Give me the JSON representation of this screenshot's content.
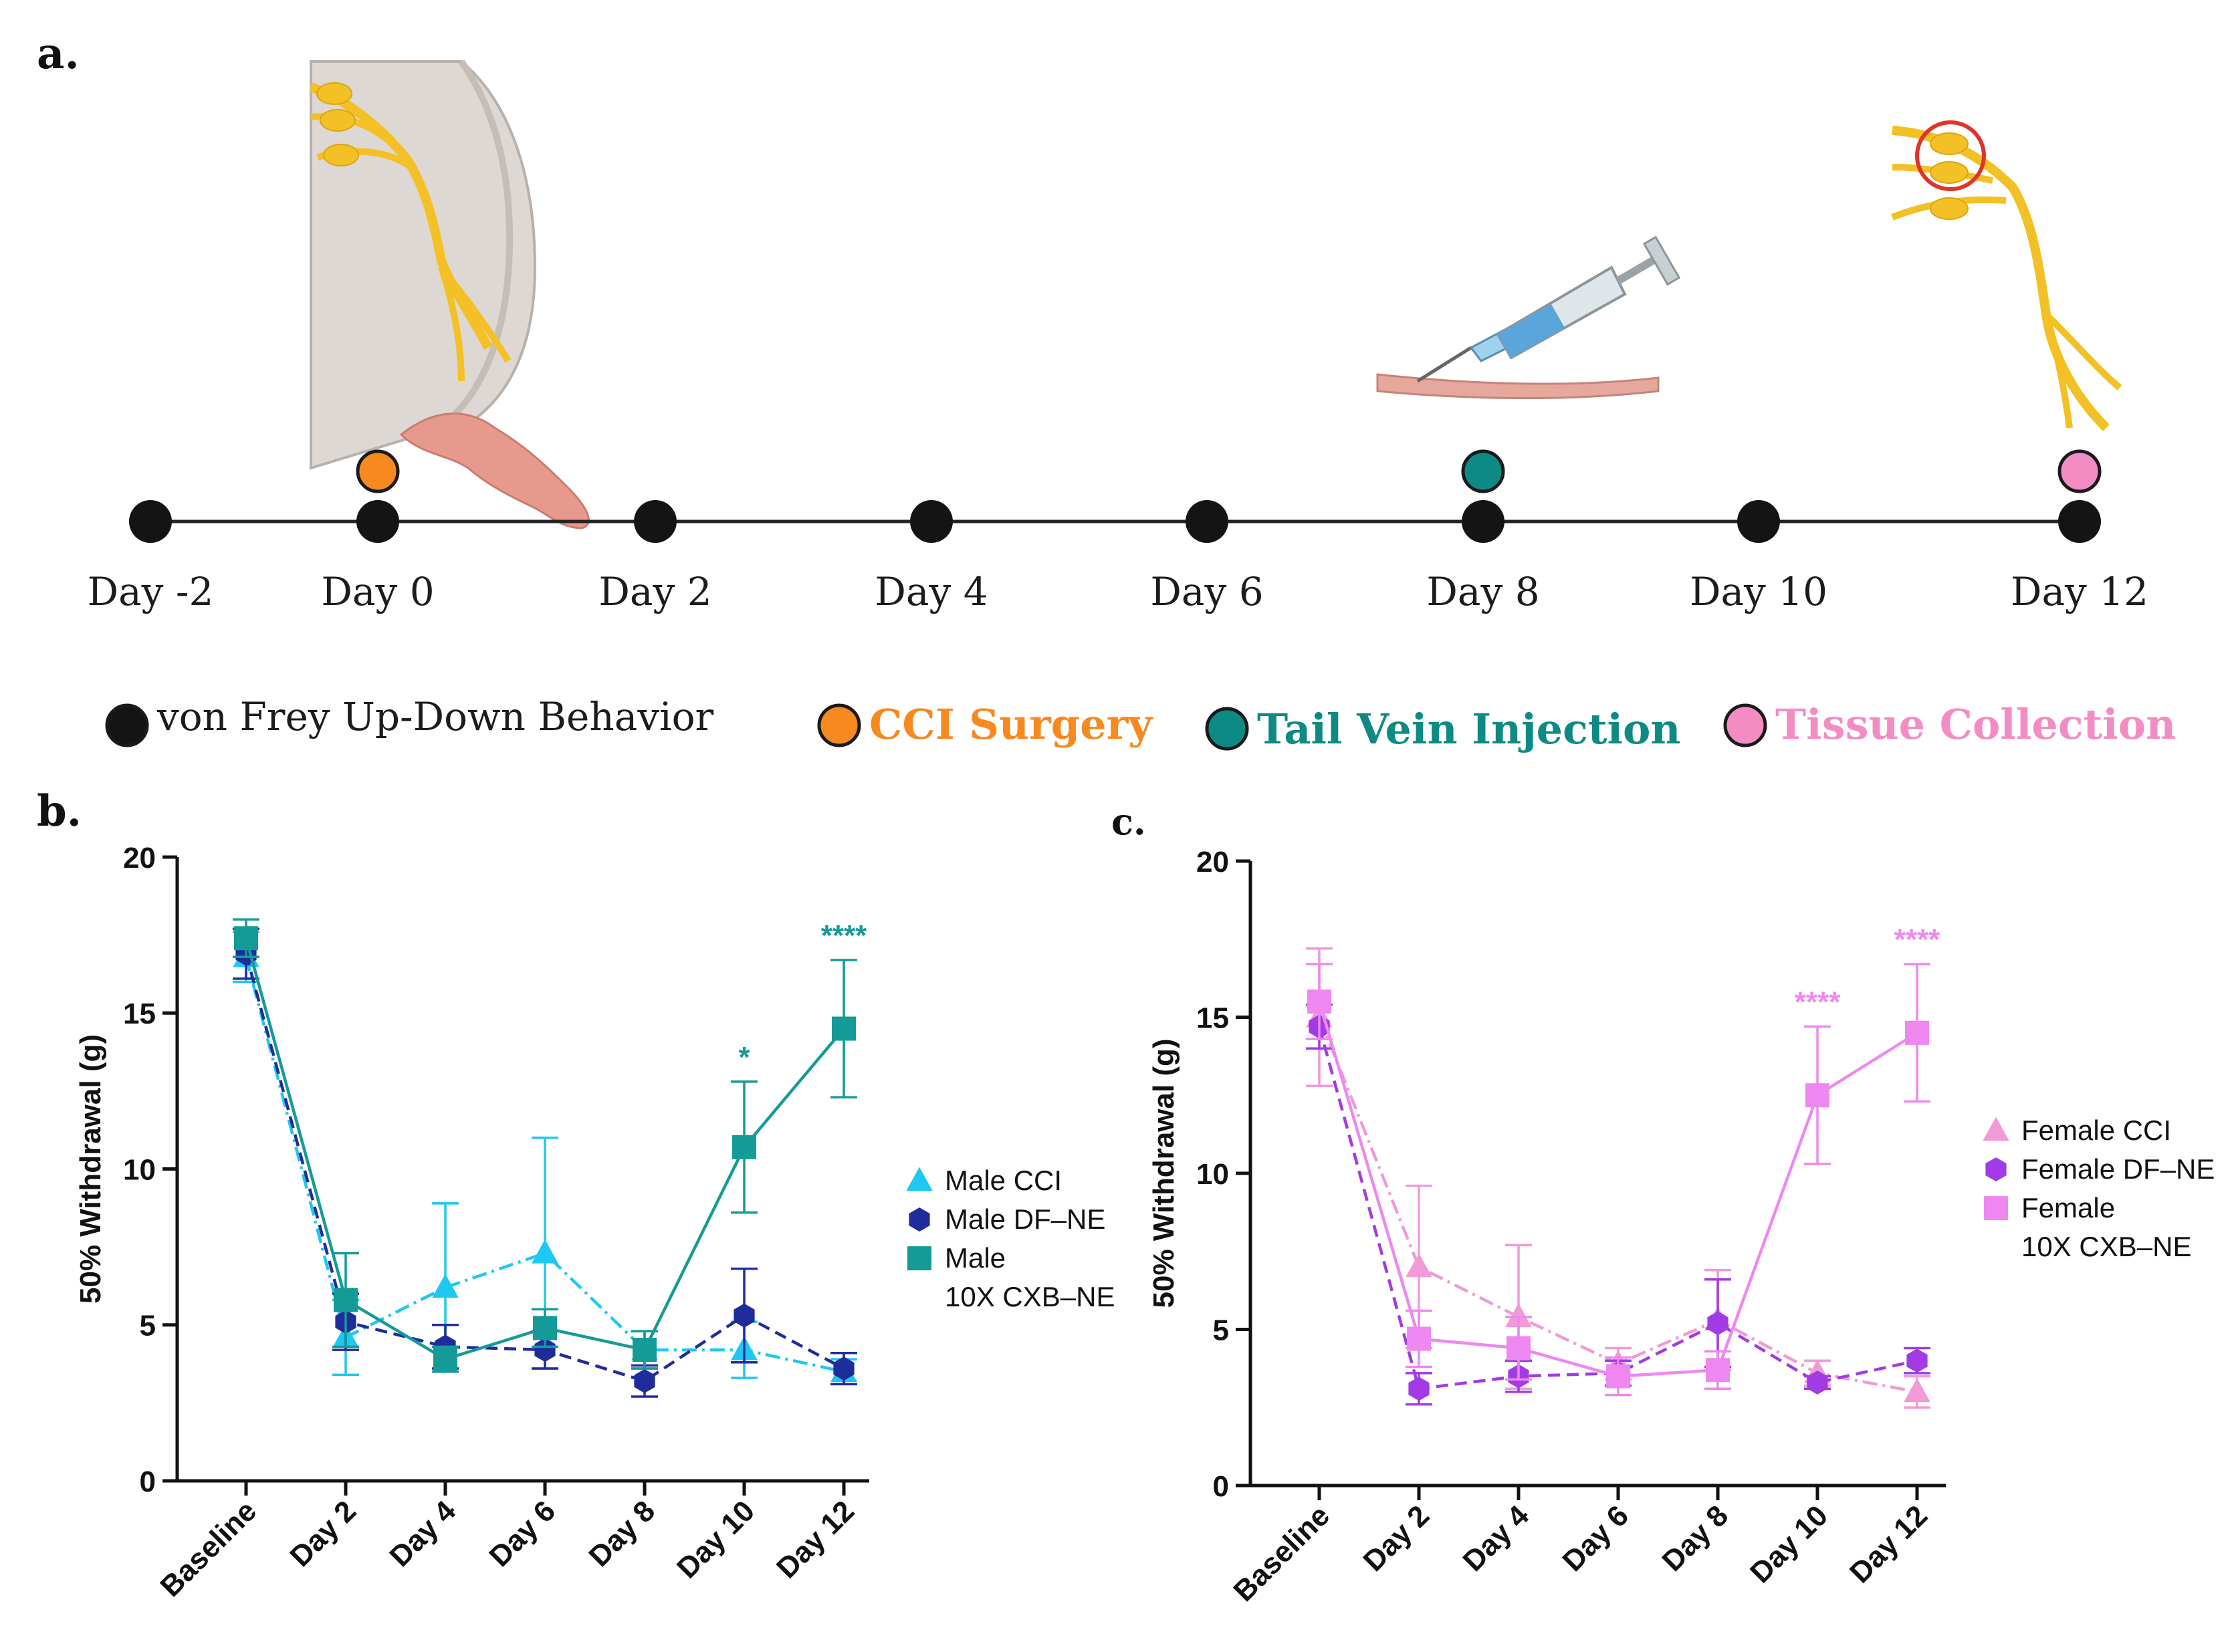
{
  "panels": {
    "a": "a.",
    "b": "b.",
    "c": "c."
  },
  "timeline": {
    "days": [
      "Day -2",
      "Day 0",
      "Day 2",
      "Day 4",
      "Day 6",
      "Day 8",
      "Day 10",
      "Day 12"
    ],
    "events": [
      {
        "day": "Day 0",
        "color": "#f7891f"
      },
      {
        "day": "Day 8",
        "color": "#0d8a84"
      },
      {
        "day": "Day 12",
        "color": "#f48cc4"
      }
    ]
  },
  "legend": [
    {
      "label": "von Frey Up-Down Behavior",
      "color": "#141414",
      "text_color": "#1c1c1c"
    },
    {
      "label": "CCI Surgery",
      "color": "#f7891f",
      "text_color": "#f7891f"
    },
    {
      "label": "Tail Vein Injection",
      "color": "#0d8a84",
      "text_color": "#0d8a84"
    },
    {
      "label": "Tissue Collection",
      "color": "#f48cc4",
      "text_color": "#f48cc4"
    }
  ],
  "chart_data": [
    {
      "type": "line",
      "panel": "b",
      "ylabel": "50% Withdrawal (g)",
      "xlabel": "",
      "ylim": [
        0,
        20
      ],
      "yticks": [
        "0",
        "5",
        "10",
        "15",
        "20"
      ],
      "categories": [
        "Baseline",
        "Day 2",
        "Day 4",
        "Day 6",
        "Day 8",
        "Day 10",
        "Day 12"
      ],
      "series": [
        {
          "name": "Male CCI",
          "color": "#1ec8f0",
          "marker": "triangle",
          "dash": "dashdot",
          "values": [
            16.8,
            4.6,
            6.2,
            7.3,
            4.2,
            4.2,
            3.5
          ],
          "errors": [
            0.8,
            1.2,
            2.7,
            3.7,
            0.6,
            0.9,
            0.4
          ]
        },
        {
          "name": "Male DF–NE",
          "color": "#1f2d9c",
          "marker": "hexagon",
          "dash": "dashed",
          "values": [
            16.9,
            5.1,
            4.3,
            4.2,
            3.2,
            5.3,
            3.6
          ],
          "errors": [
            0.8,
            0.9,
            0.7,
            0.6,
            0.5,
            1.5,
            0.5
          ]
        },
        {
          "name": "Male",
          "name_line2": "10X CXB–NE",
          "color": "#149b98",
          "marker": "square",
          "dash": "solid",
          "values": [
            17.4,
            5.8,
            3.9,
            4.9,
            4.2,
            10.7,
            14.5
          ],
          "errors": [
            0.6,
            1.5,
            0.4,
            0.6,
            0.6,
            2.1,
            2.2
          ]
        }
      ],
      "annotations": [
        {
          "text": "*",
          "category": "Day 10",
          "color": "#149b98"
        },
        {
          "text": "****",
          "category": "Day 12",
          "color": "#149b98"
        }
      ],
      "legend_position": "right"
    },
    {
      "type": "line",
      "panel": "c",
      "ylabel": "50% Withdrawal (g)",
      "xlabel": "",
      "ylim": [
        0,
        20
      ],
      "yticks": [
        "0",
        "5",
        "10",
        "15",
        "20"
      ],
      "categories": [
        "Baseline",
        "Day 2",
        "Day 4",
        "Day 6",
        "Day 8",
        "Day 10",
        "Day 12"
      ],
      "series": [
        {
          "name": "Female CCI",
          "color": "#f29ad8",
          "marker": "triangle",
          "dash": "dashdot",
          "values": [
            15.0,
            7.0,
            5.4,
            3.9,
            5.3,
            3.6,
            3.0
          ],
          "errors": [
            2.2,
            2.6,
            2.3,
            0.5,
            1.6,
            0.4,
            0.5
          ]
        },
        {
          "name": "Female DF–NE",
          "color": "#a23ae6",
          "marker": "hexagon",
          "dash": "dashed",
          "values": [
            14.7,
            3.1,
            3.5,
            3.6,
            5.2,
            3.3,
            4.0
          ],
          "errors": [
            0.7,
            0.5,
            0.5,
            0.4,
            1.4,
            0.2,
            0.4
          ]
        },
        {
          "name": "Female",
          "name_line2": "10X CXB–NE",
          "color": "#ee88f0",
          "marker": "square",
          "dash": "solid",
          "values": [
            15.5,
            4.7,
            4.4,
            3.5,
            3.7,
            12.5,
            14.5
          ],
          "errors": [
            1.2,
            0.9,
            1.0,
            0.6,
            0.6,
            2.2,
            2.2
          ]
        }
      ],
      "annotations": [
        {
          "text": "****",
          "category": "Day 10",
          "color": "#ee88f0"
        },
        {
          "text": "****",
          "category": "Day 12",
          "color": "#ee88f0"
        }
      ],
      "legend_position": "right"
    }
  ]
}
